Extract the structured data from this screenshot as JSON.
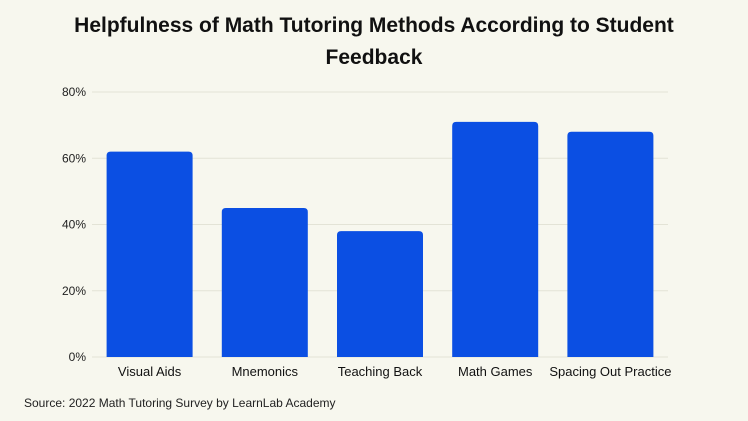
{
  "title_lines": [
    "Helpfulness of Math Tutoring Methods According to Student",
    "Feedback"
  ],
  "source": "Source: 2022 Math Tutoring Survey by LearnLab Academy",
  "colors": {
    "bar": "#0b4fe3",
    "grid": "#e3e3d6",
    "background": "#f7f7ee"
  },
  "chart_data": {
    "type": "bar",
    "title": "Helpfulness of Math Tutoring Methods According to Student Feedback",
    "categories": [
      "Visual Aids",
      "Mnemonics",
      "Teaching Back",
      "Math Games",
      "Spacing Out Practice"
    ],
    "values": [
      62,
      45,
      38,
      71,
      68
    ],
    "unit": "%",
    "ylim": [
      0,
      80
    ],
    "yticks": [
      "0%",
      "20%",
      "40%",
      "60%",
      "80%"
    ],
    "ytick_values": [
      0,
      20,
      40,
      60,
      80
    ],
    "xlabel": "",
    "ylabel": "",
    "grid": true,
    "legend": "none"
  }
}
